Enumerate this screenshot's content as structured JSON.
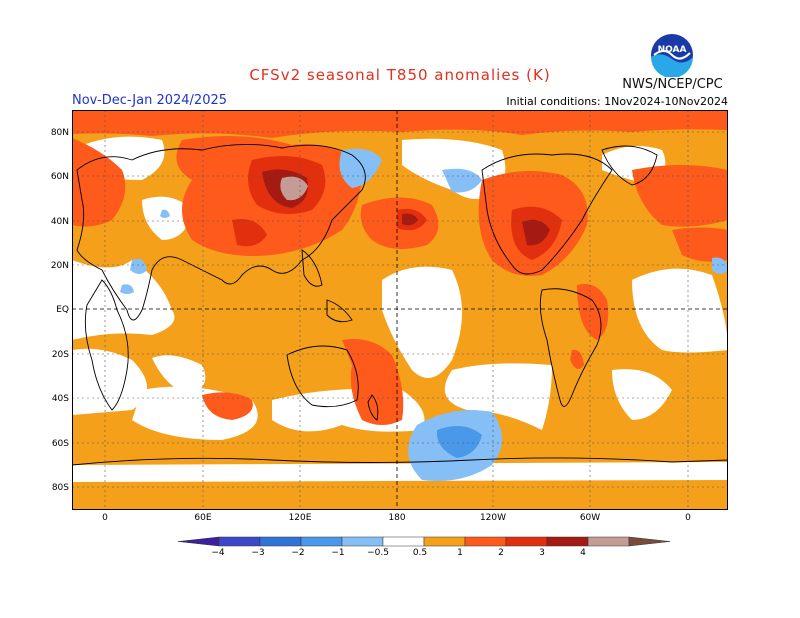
{
  "title": "CFSv2 seasonal T850 anomalies (K)",
  "subtitle": "Nov-Dec-Jan 2024/2025",
  "initial_conditions": "Initial conditions: 1Nov2024-10Nov2024",
  "agency": "NWS/NCEP/CPC",
  "logo_text": "NOAA",
  "lat_labels": [
    "80N",
    "60N",
    "40N",
    "20N",
    "EQ",
    "20S",
    "40S",
    "60S",
    "80S"
  ],
  "lon_labels": [
    "0",
    "60E",
    "120E",
    "180",
    "120W",
    "60W",
    "0"
  ],
  "colorbar": {
    "labels": [
      "−4",
      "−3",
      "−2",
      "−1",
      "−0.5",
      "0.5",
      "1",
      "2",
      "3",
      "4"
    ],
    "colors": [
      "#3c1f9e",
      "#3c48c8",
      "#2f74d6",
      "#4a98ea",
      "#86bff6",
      "#ffffff",
      "#f5a01a",
      "#fd5a1b",
      "#e2300f",
      "#a51a12",
      "#c49b95",
      "#7a4a3a"
    ]
  }
}
